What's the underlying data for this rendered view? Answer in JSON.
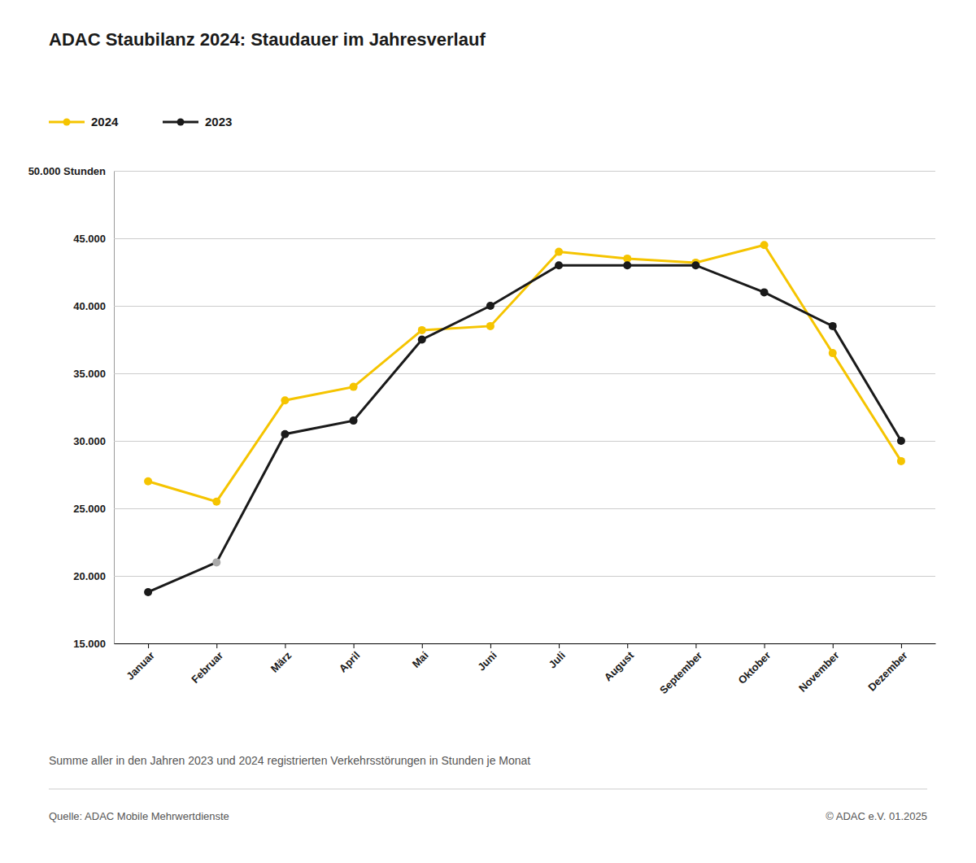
{
  "chart_data": {
    "type": "line",
    "title": "ADAC Staubilanz 2024: Staudauer im Jahresverlauf",
    "categories": [
      "Januar",
      "Februar",
      "März",
      "April",
      "Mai",
      "Juni",
      "Juli",
      "August",
      "September",
      "Oktober",
      "November",
      "Dezember"
    ],
    "series": [
      {
        "name": "2024",
        "color": "#F5C400",
        "marker": "circle",
        "values": [
          27000,
          25500,
          33000,
          34000,
          38200,
          38500,
          44000,
          43500,
          43200,
          44500,
          36500,
          28500
        ]
      },
      {
        "name": "2023",
        "color": "#1a1a1a",
        "marker": "circle",
        "colors": [
          "#1a1a1a",
          "#aaaaaa",
          "#1a1a1a",
          "#1a1a1a",
          "#1a1a1a",
          "#1a1a1a",
          "#1a1a1a",
          "#1a1a1a",
          "#1a1a1a",
          "#1a1a1a",
          "#1a1a1a",
          "#1a1a1a"
        ],
        "values": [
          18800,
          21000,
          30500,
          31500,
          37500,
          40000,
          43000,
          43000,
          43000,
          41000,
          38500,
          30000
        ]
      }
    ],
    "ylim": [
      15000,
      50000
    ],
    "yticks": [
      {
        "value": 15000,
        "label": "15.000"
      },
      {
        "value": 20000,
        "label": "20.000"
      },
      {
        "value": 25000,
        "label": "25.000"
      },
      {
        "value": 30000,
        "label": "30.000"
      },
      {
        "value": 35000,
        "label": "35.000"
      },
      {
        "value": 40000,
        "label": "40.000"
      },
      {
        "value": 45000,
        "label": "45.000"
      },
      {
        "value": 50000,
        "label": "50.000 Stunden"
      }
    ],
    "grid": true,
    "legend": "top-left",
    "annotations": [
      "Summe aller in den Jahren 2023 und 2024 registrierten Verkehrsstörungen in Stunden je Monat",
      "Quelle: ADAC Mobile Mehrwertdienste",
      "© ADAC e.V. 01.2025"
    ]
  }
}
